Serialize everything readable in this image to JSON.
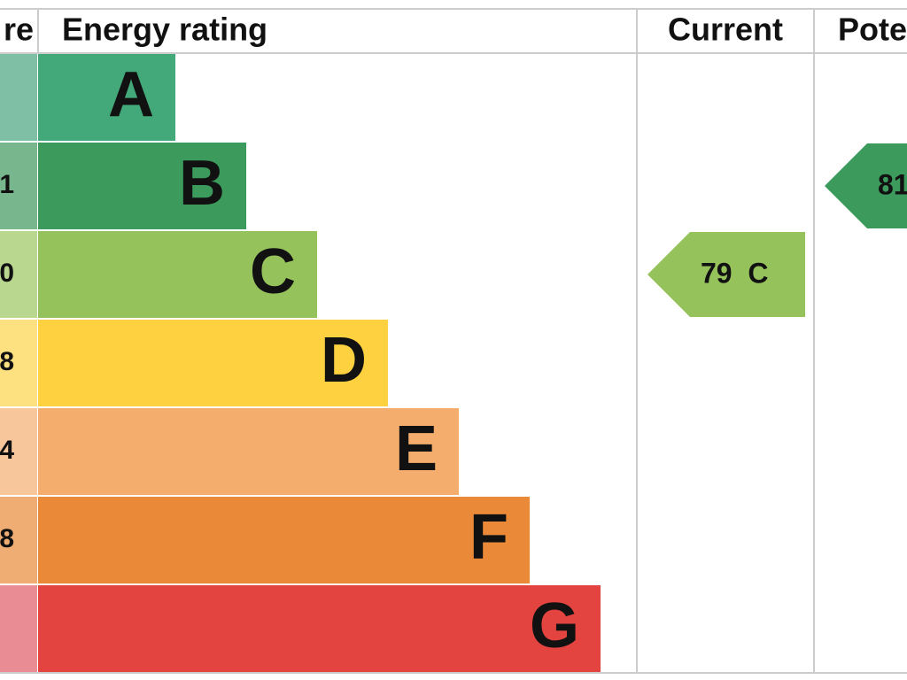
{
  "header": {
    "score": "re",
    "rating": "Energy rating",
    "current": "Current",
    "potential": "Pote"
  },
  "bands": [
    {
      "score": "",
      "letter": "A",
      "color": "#43a97a",
      "score_color": "#7fbfa5"
    },
    {
      "score": "1",
      "letter": "B",
      "color": "#3b9a5c",
      "score_color": "#78b68d"
    },
    {
      "score": "0",
      "letter": "C",
      "color": "#96c25c",
      "score_color": "#b9d78f"
    },
    {
      "score": "8",
      "letter": "D",
      "color": "#fdd140",
      "score_color": "#fde07f"
    },
    {
      "score": "4",
      "letter": "E",
      "color": "#f4ad6c",
      "score_color": "#f7c69b"
    },
    {
      "score": "8",
      "letter": "F",
      "color": "#ea8a38",
      "score_color": "#efac73"
    },
    {
      "score": "",
      "letter": "G",
      "color": "#e3443f",
      "score_color": "#e98c93"
    }
  ],
  "current": {
    "label": "79  C",
    "band": 2,
    "color": "#96c25c"
  },
  "potential": {
    "label": "81",
    "band": 1,
    "color": "#3b9a5c"
  }
}
